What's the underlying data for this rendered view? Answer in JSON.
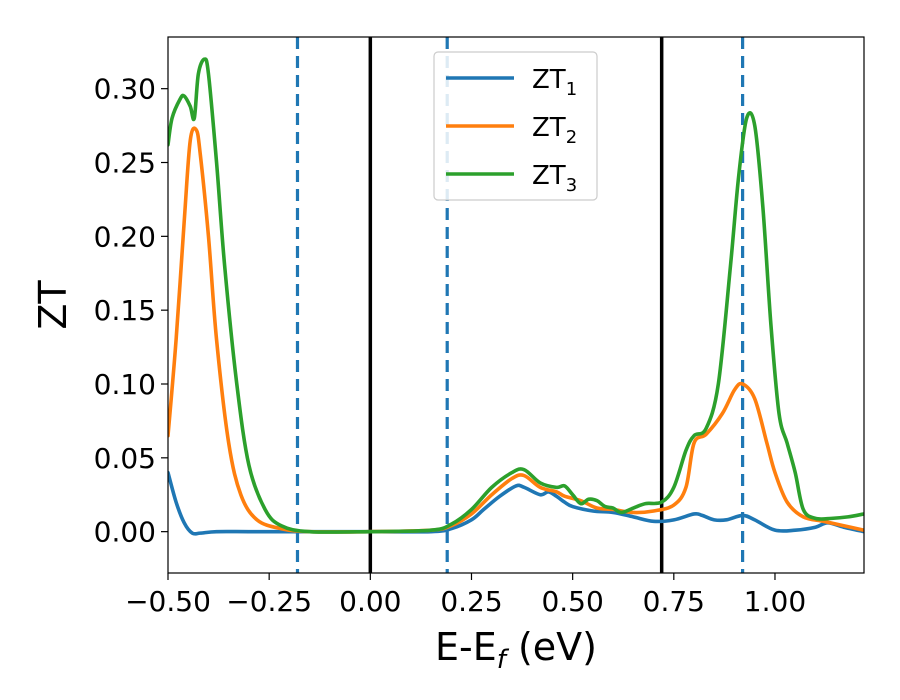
{
  "chart_data": {
    "type": "line",
    "xlabel_main": "E-E",
    "xlabel_sub": "f",
    "xlabel_unit": " (eV)",
    "ylabel": "ZT",
    "xlim": [
      -0.5,
      1.22
    ],
    "ylim": [
      -0.028,
      0.335
    ],
    "x_ticks": [
      -0.5,
      -0.25,
      0.0,
      0.25,
      0.5,
      0.75,
      1.0
    ],
    "x_tick_labels": [
      "−0.50",
      "−0.25",
      "0.00",
      "0.25",
      "0.50",
      "0.75",
      "1.00"
    ],
    "y_ticks": [
      0.0,
      0.05,
      0.1,
      0.15,
      0.2,
      0.25,
      0.3
    ],
    "y_tick_labels": [
      "0.00",
      "0.05",
      "0.10",
      "0.15",
      "0.20",
      "0.25",
      "0.30"
    ],
    "grid": false,
    "legend_position": "top-center",
    "vlines": [
      {
        "x": -0.18,
        "style": "dashed",
        "color": "#1f77b4"
      },
      {
        "x": 0.0,
        "style": "solid",
        "color": "#000000"
      },
      {
        "x": 0.19,
        "style": "dashed",
        "color": "#1f77b4"
      },
      {
        "x": 0.72,
        "style": "solid",
        "color": "#000000"
      },
      {
        "x": 0.92,
        "style": "dashed",
        "color": "#1f77b4"
      }
    ],
    "series": [
      {
        "name": "ZT",
        "name_sub": "1",
        "color": "#1f77b4",
        "points": [
          [
            -0.5,
            0.04
          ],
          [
            -0.48,
            0.02
          ],
          [
            -0.46,
            0.006
          ],
          [
            -0.44,
            -0.001
          ],
          [
            -0.42,
            -0.001
          ],
          [
            -0.38,
            0.0
          ],
          [
            -0.3,
            0.0
          ],
          [
            -0.2,
            0.0
          ],
          [
            0.0,
            0.0
          ],
          [
            0.15,
            0.0
          ],
          [
            0.2,
            0.002
          ],
          [
            0.25,
            0.008
          ],
          [
            0.28,
            0.015
          ],
          [
            0.32,
            0.024
          ],
          [
            0.36,
            0.031
          ],
          [
            0.38,
            0.03
          ],
          [
            0.42,
            0.025
          ],
          [
            0.44,
            0.027
          ],
          [
            0.46,
            0.024
          ],
          [
            0.48,
            0.02
          ],
          [
            0.5,
            0.017
          ],
          [
            0.55,
            0.014
          ],
          [
            0.6,
            0.013
          ],
          [
            0.65,
            0.01
          ],
          [
            0.7,
            0.007
          ],
          [
            0.75,
            0.008
          ],
          [
            0.8,
            0.012
          ],
          [
            0.82,
            0.011
          ],
          [
            0.85,
            0.008
          ],
          [
            0.88,
            0.008
          ],
          [
            0.92,
            0.011
          ],
          [
            0.95,
            0.008
          ],
          [
            1.0,
            0.001
          ],
          [
            1.05,
            0.001
          ],
          [
            1.1,
            0.003
          ],
          [
            1.13,
            0.006
          ],
          [
            1.17,
            0.003
          ],
          [
            1.22,
            0.0
          ]
        ]
      },
      {
        "name": "ZT",
        "name_sub": "2",
        "color": "#ff7f0e",
        "points": [
          [
            -0.5,
            0.065
          ],
          [
            -0.48,
            0.13
          ],
          [
            -0.46,
            0.21
          ],
          [
            -0.445,
            0.265
          ],
          [
            -0.43,
            0.272
          ],
          [
            -0.42,
            0.255
          ],
          [
            -0.4,
            0.2
          ],
          [
            -0.38,
            0.13
          ],
          [
            -0.35,
            0.06
          ],
          [
            -0.32,
            0.025
          ],
          [
            -0.28,
            0.008
          ],
          [
            -0.22,
            0.002
          ],
          [
            -0.15,
            0.0
          ],
          [
            0.0,
            0.0
          ],
          [
            0.15,
            0.001
          ],
          [
            0.2,
            0.004
          ],
          [
            0.25,
            0.012
          ],
          [
            0.3,
            0.025
          ],
          [
            0.35,
            0.036
          ],
          [
            0.38,
            0.038
          ],
          [
            0.42,
            0.03
          ],
          [
            0.46,
            0.027
          ],
          [
            0.48,
            0.024
          ],
          [
            0.52,
            0.021
          ],
          [
            0.56,
            0.016
          ],
          [
            0.6,
            0.015
          ],
          [
            0.65,
            0.013
          ],
          [
            0.7,
            0.014
          ],
          [
            0.75,
            0.018
          ],
          [
            0.78,
            0.03
          ],
          [
            0.8,
            0.06
          ],
          [
            0.83,
            0.066
          ],
          [
            0.87,
            0.08
          ],
          [
            0.9,
            0.096
          ],
          [
            0.92,
            0.1
          ],
          [
            0.95,
            0.09
          ],
          [
            0.98,
            0.06
          ],
          [
            1.0,
            0.04
          ],
          [
            1.03,
            0.02
          ],
          [
            1.07,
            0.01
          ],
          [
            1.12,
            0.007
          ],
          [
            1.17,
            0.004
          ],
          [
            1.22,
            0.001
          ]
        ]
      },
      {
        "name": "ZT",
        "name_sub": "3",
        "color": "#2ca02c",
        "points": [
          [
            -0.5,
            0.262
          ],
          [
            -0.49,
            0.28
          ],
          [
            -0.47,
            0.293
          ],
          [
            -0.46,
            0.295
          ],
          [
            -0.445,
            0.288
          ],
          [
            -0.435,
            0.28
          ],
          [
            -0.425,
            0.31
          ],
          [
            -0.41,
            0.32
          ],
          [
            -0.4,
            0.31
          ],
          [
            -0.38,
            0.25
          ],
          [
            -0.36,
            0.18
          ],
          [
            -0.33,
            0.1
          ],
          [
            -0.3,
            0.045
          ],
          [
            -0.26,
            0.015
          ],
          [
            -0.22,
            0.004
          ],
          [
            -0.15,
            0.0
          ],
          [
            0.0,
            0.0
          ],
          [
            0.15,
            0.001
          ],
          [
            0.2,
            0.005
          ],
          [
            0.25,
            0.015
          ],
          [
            0.3,
            0.03
          ],
          [
            0.35,
            0.04
          ],
          [
            0.38,
            0.042
          ],
          [
            0.42,
            0.033
          ],
          [
            0.46,
            0.03
          ],
          [
            0.48,
            0.031
          ],
          [
            0.5,
            0.025
          ],
          [
            0.52,
            0.019
          ],
          [
            0.54,
            0.022
          ],
          [
            0.56,
            0.021
          ],
          [
            0.58,
            0.017
          ],
          [
            0.6,
            0.016
          ],
          [
            0.62,
            0.013
          ],
          [
            0.65,
            0.016
          ],
          [
            0.68,
            0.019
          ],
          [
            0.72,
            0.02
          ],
          [
            0.75,
            0.03
          ],
          [
            0.78,
            0.055
          ],
          [
            0.8,
            0.065
          ],
          [
            0.83,
            0.07
          ],
          [
            0.86,
            0.1
          ],
          [
            0.89,
            0.18
          ],
          [
            0.91,
            0.24
          ],
          [
            0.93,
            0.28
          ],
          [
            0.95,
            0.275
          ],
          [
            0.97,
            0.22
          ],
          [
            0.99,
            0.14
          ],
          [
            1.01,
            0.08
          ],
          [
            1.03,
            0.06
          ],
          [
            1.05,
            0.04
          ],
          [
            1.07,
            0.015
          ],
          [
            1.1,
            0.009
          ],
          [
            1.14,
            0.009
          ],
          [
            1.18,
            0.01
          ],
          [
            1.22,
            0.012
          ]
        ]
      }
    ]
  }
}
